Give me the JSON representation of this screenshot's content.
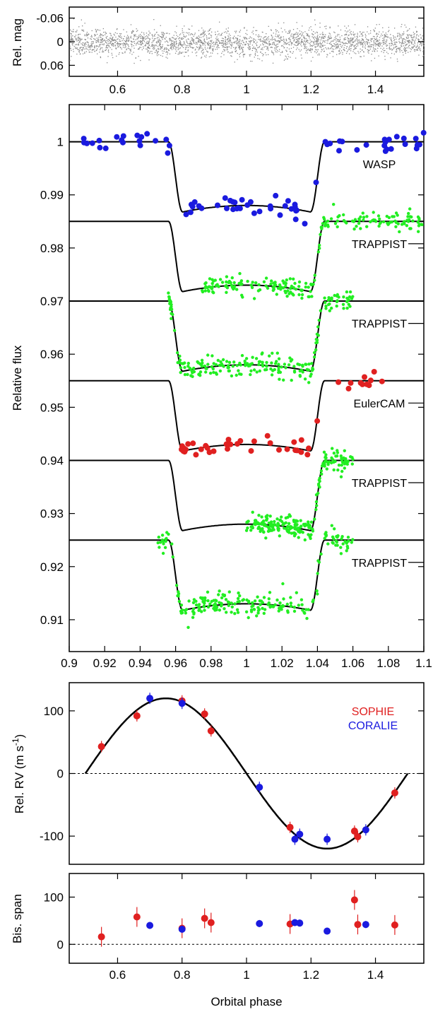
{
  "chart_data": [
    {
      "type": "scatter",
      "ylabel": "Rel. mag",
      "xlim": [
        0.45,
        1.55
      ],
      "ylim": [
        0.088,
        -0.088
      ],
      "xticks": [
        "0.6",
        "0.8",
        "1",
        "1.2",
        "1.4"
      ],
      "xtick_values": [
        0.6,
        0.8,
        1.0,
        1.2,
        1.4
      ],
      "yticks": [
        "-0.06",
        "0",
        "0.06"
      ],
      "ytick_values": [
        -0.06,
        0,
        0.06
      ],
      "series": [
        {
          "values_desc": "dense band of grey points scattered around 0 (scatter ±0.04) across full phase range",
          "color": "#8a8a8a"
        }
      ]
    },
    {
      "type": "scatter",
      "ylabel": "Relative flux",
      "xlim": [
        0.9,
        1.1
      ],
      "ylim": [
        0.904,
        1.007
      ],
      "xticks": [
        "0.9",
        "0.92",
        "0.94",
        "0.96",
        "0.98",
        "1",
        "1.02",
        "1.04",
        "1.06",
        "1.08",
        "1.1"
      ],
      "xtick_values": [
        0.9,
        0.92,
        0.94,
        0.96,
        0.98,
        1.0,
        1.02,
        1.04,
        1.06,
        1.08,
        1.1
      ],
      "yticks": [
        "1",
        "0.99",
        "0.98",
        "0.97",
        "0.96",
        "0.95",
        "0.94",
        "0.93",
        "0.92",
        "0.91"
      ],
      "ytick_values": [
        1.0,
        0.99,
        0.98,
        0.97,
        0.96,
        0.95,
        0.94,
        0.93,
        0.92,
        0.91
      ],
      "transit": {
        "ingress_start": 0.956,
        "ingress_end": 0.964,
        "egress_start": 1.036,
        "egress_end": 1.044,
        "depth": 0.0135,
        "curvature": 0.0015
      },
      "series": [
        {
          "name": "WASP",
          "baseline": 1.0,
          "color": "#1a1adf",
          "marker": "large",
          "x_range": [
            0.9,
            1.1
          ],
          "scatter": 0.0008
        },
        {
          "name": "TRAPPIST",
          "baseline": 0.985,
          "color": "#22ee22",
          "marker": "small",
          "x_range": [
            0.975,
            1.1
          ],
          "scatter": 0.0009
        },
        {
          "name": "TRAPPIST",
          "baseline": 0.97,
          "color": "#22ee22",
          "marker": "small",
          "x_range": [
            0.955,
            1.06
          ],
          "scatter": 0.001
        },
        {
          "name": "EulerCAM",
          "baseline": 0.955,
          "color": "#e02020",
          "marker": "large",
          "x_range": [
            0.963,
            1.08
          ],
          "scatter": 0.0008
        },
        {
          "name": "TRAPPIST",
          "baseline": 0.94,
          "color": "#22ee22",
          "marker": "small",
          "x_range": [
            1.0,
            1.06
          ],
          "scatter": 0.001
        },
        {
          "name": "TRAPPIST",
          "baseline": 0.925,
          "color": "#22ee22",
          "marker": "small",
          "x_range": [
            0.95,
            1.06
          ],
          "scatter": 0.0011
        }
      ]
    },
    {
      "type": "scatter",
      "ylabel": "Rel. RV (m s-1)",
      "xlim": [
        0.45,
        1.55
      ],
      "ylim": [
        -145,
        145
      ],
      "xticks": [],
      "yticks": [
        "100",
        "0",
        "-100"
      ],
      "ytick_values": [
        100,
        0,
        -100
      ],
      "model": {
        "amplitude": 120,
        "x_range": [
          0.5,
          1.5
        ]
      },
      "zero_line": true,
      "series": [
        {
          "name": "SOPHIE",
          "color": "#e02020",
          "x": [
            0.55,
            0.66,
            0.8,
            0.87,
            0.89,
            1.135,
            1.335,
            1.345,
            1.46
          ],
          "y": [
            43,
            92,
            116,
            95,
            68,
            -86,
            -92,
            -101,
            -31
          ]
        },
        {
          "name": "CORALIE",
          "color": "#1a1adf",
          "x": [
            0.7,
            0.8,
            1.04,
            1.15,
            1.165,
            1.25,
            1.37
          ],
          "y": [
            120,
            112,
            -22,
            -105,
            -97,
            -105,
            -90
          ]
        }
      ]
    },
    {
      "type": "scatter",
      "ylabel": "Bis. span",
      "xlabel": "Orbital phase",
      "xlim": [
        0.45,
        1.55
      ],
      "ylim": [
        -40,
        150
      ],
      "xticks": [
        "0.6",
        "0.8",
        "1",
        "1.2",
        "1.4"
      ],
      "xtick_values": [
        0.6,
        0.8,
        1.0,
        1.2,
        1.4
      ],
      "yticks": [
        "100",
        "0"
      ],
      "ytick_values": [
        100,
        0
      ],
      "zero_line": true,
      "series": [
        {
          "name": "SOPHIE",
          "color": "#e02020",
          "x": [
            0.55,
            0.66,
            0.8,
            0.87,
            0.89,
            1.135,
            1.335,
            1.345,
            1.46
          ],
          "y": [
            16,
            58,
            34,
            55,
            46,
            43,
            94,
            42,
            41
          ]
        },
        {
          "name": "CORALIE",
          "color": "#1a1adf",
          "x": [
            0.7,
            0.8,
            1.04,
            1.15,
            1.165,
            1.25,
            1.37
          ],
          "y": [
            40,
            32,
            44,
            46,
            45,
            28,
            42
          ]
        }
      ]
    }
  ]
}
